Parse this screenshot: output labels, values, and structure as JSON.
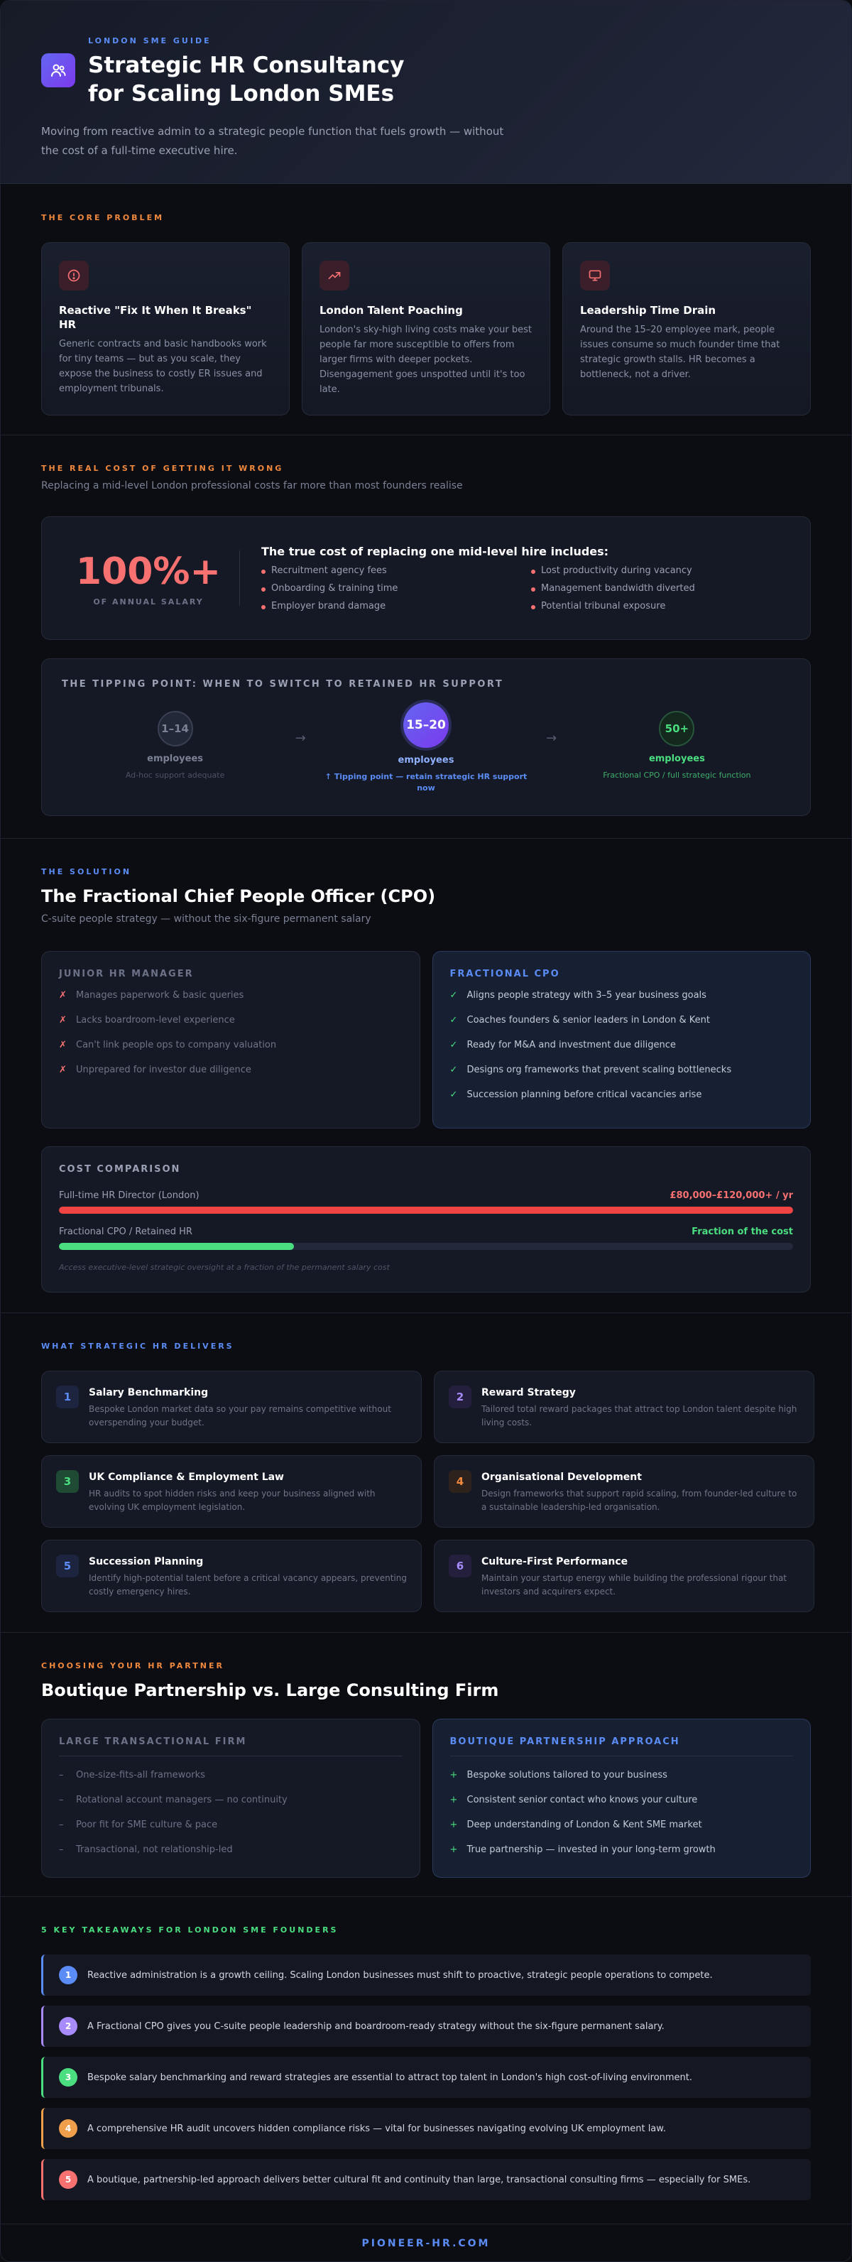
{
  "hero": {
    "eyebrow": "LONDON SME GUIDE",
    "title_line1": "Strategic HR Consultancy",
    "title_line2": "for Scaling London SMEs",
    "subtitle": "Moving from reactive admin to a strategic people function that fuels growth — without the cost of a full-time executive hire.",
    "logo_icon": "people-icon"
  },
  "problem": {
    "eyebrow": "THE CORE PROBLEM",
    "cards": [
      {
        "icon": "alert-circle-icon",
        "title": "Reactive \"Fix It When It Breaks\" HR",
        "text": "Generic contracts and basic handbooks work for tiny teams — but as you scale, they expose the business to costly ER issues and employment tribunals."
      },
      {
        "icon": "trending-up-icon",
        "title": "London Talent Poaching",
        "text": "London's sky-high living costs make your best people far more susceptible to offers from larger firms with deeper pockets. Disengagement goes unspotted until it's too late."
      },
      {
        "icon": "monitor-icon",
        "title": "Leadership Time Drain",
        "text": "Around the 15–20 employee mark, people issues consume so much founder time that strategic growth stalls. HR becomes a bottleneck, not a driver."
      }
    ]
  },
  "cost": {
    "eyebrow": "THE REAL COST OF GETTING IT WRONG",
    "subtitle": "Replacing a mid-level London professional costs far more than most founders realise",
    "big_number": "100%+",
    "big_label": "OF ANNUAL SALARY",
    "list_title": "The true cost of replacing one mid-level hire includes:",
    "items": [
      "Recruitment agency fees",
      "Lost productivity during vacancy",
      "Onboarding & training time",
      "Management bandwidth diverted",
      "Employer brand damage",
      "Potential tribunal exposure"
    ],
    "tipping": {
      "title": "THE TIPPING POINT: WHEN TO SWITCH TO RETAINED HR SUPPORT",
      "stages": [
        {
          "value": "1–14",
          "label": "employees",
          "sub": "Ad-hoc support adequate"
        },
        {
          "value": "15–20",
          "label": "employees",
          "sub": "↑ Tipping point — retain strategic HR support now"
        },
        {
          "value": "50+",
          "label": "employees",
          "sub": "Fractional CPO / full strategic function"
        }
      ],
      "arrow": "→"
    }
  },
  "solution": {
    "eyebrow": "THE SOLUTION",
    "title": "The Fractional Chief People Officer (CPO)",
    "subtitle": "C-suite people strategy — without the six-figure permanent salary",
    "junior": {
      "title": "JUNIOR HR MANAGER",
      "mark": "✗",
      "items": [
        "Manages paperwork & basic queries",
        "Lacks boardroom-level experience",
        "Can't link people ops to company valuation",
        "Unprepared for investor due diligence"
      ]
    },
    "cpo": {
      "title": "FRACTIONAL CPO",
      "mark": "✓",
      "items": [
        "Aligns people strategy with 3–5 year business goals",
        "Coaches founders & senior leaders in London & Kent",
        "Ready for M&A and investment due diligence",
        "Designs org frameworks that prevent scaling bottlenecks",
        "Succession planning before critical vacancies arise"
      ]
    },
    "comparison": {
      "title": "COST COMPARISON",
      "bars": [
        {
          "label": "Full-time HR Director (London)",
          "value_text": "£80,000–£120,000+ / yr",
          "fraction": 1.0,
          "color": "#ef4444"
        },
        {
          "label": "Fractional CPO / Retained HR",
          "value_text": "Fraction of the cost",
          "fraction": 0.32,
          "color": "#4ade80"
        }
      ],
      "note": "Access executive-level strategic oversight at a fraction of the permanent salary cost"
    }
  },
  "delivers": {
    "eyebrow": "WHAT STRATEGIC HR DELIVERS",
    "items": [
      {
        "num": "1",
        "title": "Salary Benchmarking",
        "text": "Bespoke London market data so your pay remains competitive without overspending your budget.",
        "color": "#5b8cf5",
        "bg": "#1c2440"
      },
      {
        "num": "2",
        "title": "Reward Strategy",
        "text": "Tailored total reward packages that attract top London talent despite high living costs.",
        "color": "#a78bfa",
        "bg": "#241f3d"
      },
      {
        "num": "3",
        "title": "UK Compliance & Employment Law",
        "text": "HR audits to spot hidden risks and keep your business aligned with evolving UK employment legislation.",
        "color": "#4ade80",
        "bg": "#1f4a34"
      },
      {
        "num": "4",
        "title": "Organisational Development",
        "text": "Design frameworks that support rapid scaling, from founder-led culture to a sustainable leadership-led organisation.",
        "color": "#f0883e",
        "bg": "#2e231c"
      },
      {
        "num": "5",
        "title": "Succession Planning",
        "text": "Identify high-potential talent before a critical vacancy appears, preventing costly emergency hires.",
        "color": "#5b8cf5",
        "bg": "#1c2440"
      },
      {
        "num": "6",
        "title": "Culture-First Performance",
        "text": "Maintain your startup energy while building the professional rigour that investors and acquirers expect.",
        "color": "#a78bfa",
        "bg": "#241f3d"
      }
    ]
  },
  "partner": {
    "eyebrow": "CHOOSING YOUR HR PARTNER",
    "title": "Boutique Partnership vs. Large Consulting Firm",
    "large": {
      "title": "LARGE TRANSACTIONAL FIRM",
      "mark": "–",
      "items": [
        "One-size-fits-all frameworks",
        "Rotational account managers — no continuity",
        "Poor fit for SME culture & pace",
        "Transactional, not relationship-led"
      ]
    },
    "boutique": {
      "title": "BOUTIQUE PARTNERSHIP APPROACH",
      "mark": "+",
      "items": [
        "Bespoke solutions tailored to your business",
        "Consistent senior contact who knows your culture",
        "Deep understanding of London & Kent SME market",
        "True partnership — invested in your long-term growth"
      ]
    }
  },
  "takeaways": {
    "eyebrow": "5 KEY TAKEAWAYS FOR LONDON SME FOUNDERS",
    "items": [
      {
        "num": "1",
        "text": "Reactive administration is a growth ceiling. Scaling London businesses must shift to proactive, strategic people operations to compete.",
        "color": "#5b8cf5"
      },
      {
        "num": "2",
        "text": "A Fractional CPO gives you C-suite people leadership and boardroom-ready strategy without the six-figure permanent salary.",
        "color": "#a78bfa"
      },
      {
        "num": "3",
        "text": "Bespoke salary benchmarking and reward strategies are essential to attract top talent in London's high cost-of-living environment.",
        "color": "#4ade80"
      },
      {
        "num": "4",
        "text": "A comprehensive HR audit uncovers hidden compliance risks — vital for businesses navigating evolving UK employment law.",
        "color": "#f0a04b"
      },
      {
        "num": "5",
        "text": "A boutique, partnership-led approach delivers better cultural fit and continuity than large, transactional consulting firms — especially for SMEs.",
        "color": "#f87171"
      }
    ]
  },
  "footer": {
    "text": "PIONEER-HR.COM"
  }
}
